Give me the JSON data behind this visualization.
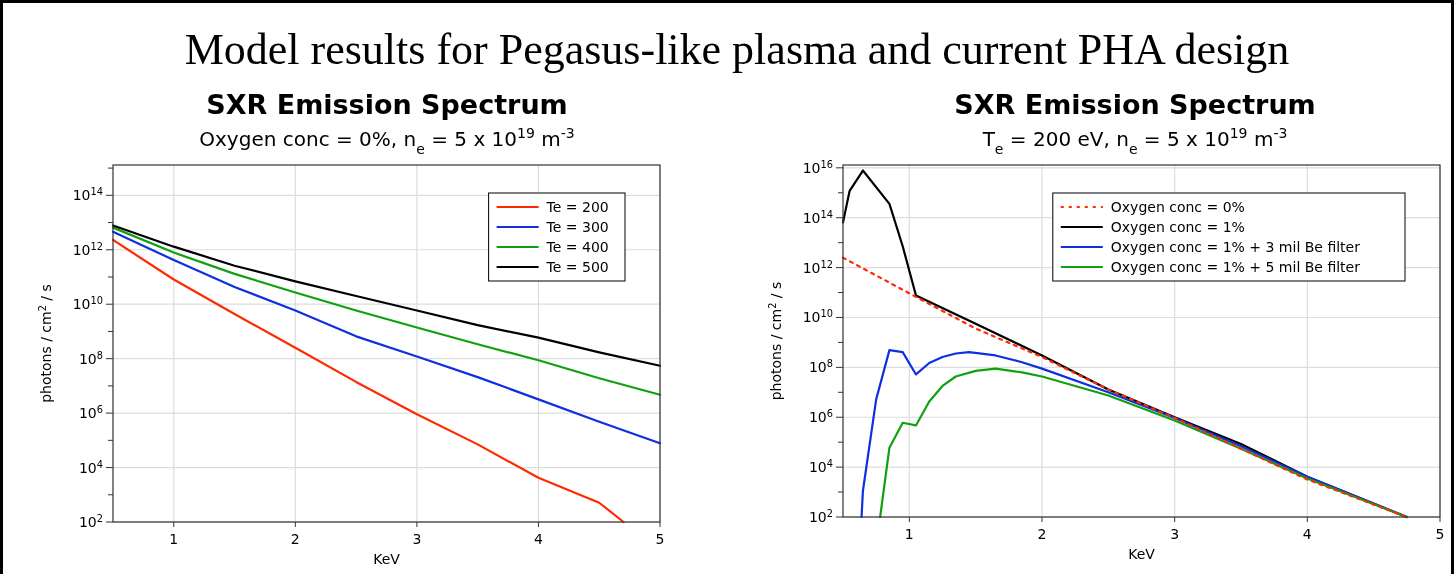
{
  "chart_data": [
    {
      "type": "line",
      "title": "SXR Emission Spectrum",
      "subtitle": "Oxygen conc = 0%, n$_{e}$ = 5 x 10$^{19}$ m$^{-3}$",
      "xlabel": "KeV",
      "ylabel": "photons / cm$^{2}$ / s",
      "annotations": [
        "Model results for Pegasus-like plasma and current PHA design"
      ],
      "log": "y",
      "grid": true,
      "legend": "top right",
      "xlim": [
        0.5,
        5
      ],
      "ylim": [
        100,
        1300000000000000.0
      ],
      "xticks": [
        1,
        2,
        3,
        4,
        5
      ],
      "yticks": [
        {
          "value": 100,
          "label": "10$^{2}$"
        },
        {
          "value": 1000,
          "label": null
        },
        {
          "value": 10000.0,
          "label": "10$^{4}$"
        },
        {
          "value": 100000.0,
          "label": null
        },
        {
          "value": 1000000.0,
          "label": "10$^{6}$"
        },
        {
          "value": 10000000.0,
          "label": null
        },
        {
          "value": 100000000.0,
          "label": "10$^{8}$"
        },
        {
          "value": 1000000000.0,
          "label": null
        },
        {
          "value": 10000000000.0,
          "label": "10$^{10}$"
        },
        {
          "value": 100000000000.0,
          "label": null
        },
        {
          "value": 1000000000000.0,
          "label": "10$^{12}$"
        },
        {
          "value": 10000000000000.0,
          "label": null
        },
        {
          "value": 100000000000000.0,
          "label": "10$^{14}$"
        },
        {
          "value": 1000000000000000.0,
          "label": null
        }
      ],
      "series": [
        {
          "name": "Te = 200",
          "color": "#ff2a00",
          "x": [
            0.5,
            1,
            1.5,
            2,
            2.5,
            3,
            3.5,
            4,
            4.5,
            4.7
          ],
          "values": [
            2300000000000.0,
            81000000000.0,
            4400000000.0,
            250000000.0,
            14000000.0,
            910000.0,
            71000.0,
            4200.0,
            510.0,
            100
          ]
        },
        {
          "name": "Te = 300",
          "color": "#1030e0",
          "x": [
            0.5,
            1,
            1.5,
            2,
            2.5,
            3,
            3.5,
            4,
            4.5,
            5
          ],
          "values": [
            4600000000000.0,
            420000000000.0,
            43000000000.0,
            5900000000.0,
            660000000.0,
            120000000.0,
            21000000.0,
            3200000.0,
            480000.0,
            78000.0
          ]
        },
        {
          "name": "Te = 400",
          "color": "#10a010",
          "x": [
            0.5,
            1,
            1.5,
            2,
            2.5,
            3,
            3.5,
            4,
            4.5,
            5
          ],
          "values": [
            6500000000000.0,
            790000000000.0,
            130000000000.0,
            27000000000.0,
            5900000000.0,
            1400000000.0,
            340000000.0,
            87000000.0,
            19000000.0,
            4700000.0
          ]
        },
        {
          "name": "Te = 500",
          "color": "#000000",
          "x": [
            0.5,
            1,
            1.5,
            2,
            2.5,
            3,
            3.5,
            4,
            4.5,
            5
          ],
          "values": [
            7800000000000.0,
            1300000000000.0,
            260000000000.0,
            69000000000.0,
            20000000000.0,
            5900000000.0,
            1700000000.0,
            590000000.0,
            170000000.0,
            55000000.0
          ]
        }
      ]
    },
    {
      "type": "line",
      "title": "SXR Emission Spectrum",
      "subtitle": "T$_{e}$ = 200 eV, n$_{e}$ = 5 x 10$^{19}$ m$^{-3}$",
      "xlabel": "KeV",
      "ylabel": "photons / cm$^{2}$ / s",
      "log": "y",
      "grid": true,
      "legend": "top right",
      "xlim": [
        0.5,
        5
      ],
      "ylim": [
        100,
        1.3e+16
      ],
      "xticks": [
        1,
        2,
        3,
        4,
        5
      ],
      "yticks": [
        {
          "value": 100,
          "label": "10$^{2}$"
        },
        {
          "value": 1000,
          "label": null
        },
        {
          "value": 10000.0,
          "label": "10$^{4}$"
        },
        {
          "value": 100000.0,
          "label": null
        },
        {
          "value": 1000000.0,
          "label": "10$^{6}$"
        },
        {
          "value": 10000000.0,
          "label": null
        },
        {
          "value": 100000000.0,
          "label": "10$^{8}$"
        },
        {
          "value": 1000000000.0,
          "label": null
        },
        {
          "value": 10000000000.0,
          "label": "10$^{10}$"
        },
        {
          "value": 100000000000.0,
          "label": null
        },
        {
          "value": 1000000000000.0,
          "label": "10$^{12}$"
        },
        {
          "value": 10000000000000.0,
          "label": null
        },
        {
          "value": 100000000000000.0,
          "label": "10$^{14}$"
        },
        {
          "value": 1000000000000000.0,
          "label": null
        },
        {
          "value": 1e+16,
          "label": "10$^{16}$"
        }
      ],
      "series": [
        {
          "name": "Oxygen conc = 0%",
          "color": "#ff2a00",
          "line_style": "dotted",
          "x": [
            0.5,
            1,
            1.5,
            2,
            2.5,
            3,
            3.5,
            4,
            4.75
          ],
          "values": [
            2500000000000.0,
            93000000000.0,
            3600000000.0,
            260000000.0,
            13000000.0,
            930000.0,
            55000.0,
            3200.0,
            100
          ]
        },
        {
          "name": "Oxygen conc = 1%",
          "color": "#000000",
          "x": [
            0.5,
            0.55,
            0.65,
            0.85,
            0.95,
            1.05,
            1.5,
            2,
            2.5,
            3,
            3.5,
            4,
            4.75
          ],
          "values": [
            65000000000000.0,
            1200000000000000.0,
            7800000000000000.0,
            360000000000000.0,
            7200000000000.0,
            76000000000.0,
            5600000000.0,
            300000000.0,
            13000000.0,
            1000000.0,
            85000.0,
            4100.0,
            100
          ]
        },
        {
          "name": "Oxygen conc = 1% + 3 mil Be filter",
          "color": "#1030e0",
          "x": [
            0.64,
            0.65,
            0.75,
            0.85,
            0.95,
            1.05,
            1.15,
            1.25,
            1.35,
            1.45,
            1.65,
            1.85,
            2,
            2.5,
            3,
            3.5,
            4,
            4.75
          ],
          "values": [
            100,
            1100.0,
            5200000.0,
            490000000.0,
            410000000.0,
            52000000.0,
            150000000.0,
            260000000.0,
            360000000.0,
            410000000.0,
            300000000.0,
            160000000.0,
            89000000.0,
            10000000.0,
            930000.0,
            68000.0,
            4100.0,
            100
          ]
        },
        {
          "name": "Oxygen conc = 1% + 5 mil Be filter",
          "color": "#10a010",
          "x": [
            0.78,
            0.85,
            0.95,
            1.05,
            1.15,
            1.25,
            1.35,
            1.5,
            1.65,
            1.85,
            2,
            2.5,
            3,
            3.5,
            4,
            4.75
          ],
          "values": [
            100,
            60000.0,
            600000.0,
            470000.0,
            4300000.0,
            18000000.0,
            43000000.0,
            72000000.0,
            89000000.0,
            63000000.0,
            43000000.0,
            7400000.0,
            740000.0,
            55000.0,
            3500.0,
            100
          ]
        }
      ]
    }
  ]
}
